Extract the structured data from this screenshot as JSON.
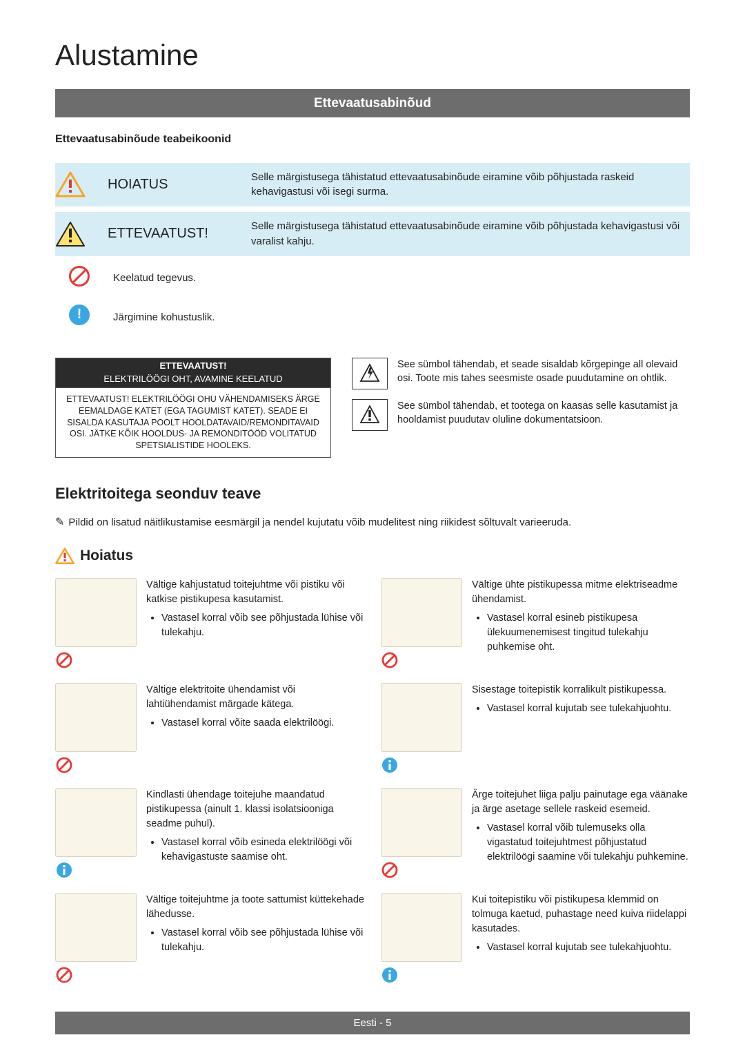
{
  "page_title": "Alustamine",
  "section_bar": "Ettevaatusabinõud",
  "subheading": "Ettevaatusabinõude teabeikoonid",
  "rows": {
    "warning": {
      "label": "HOIATUS",
      "desc": "Selle märgistusega tähistatud ettevaatusabinõude eiramine võib põhjustada raskeid kehavigastusi või isegi surma."
    },
    "caution": {
      "label": "ETTEVAATUST!",
      "desc": "Selle märgistusega tähistatud ettevaatusabinõude eiramine võib põhjustada kehavigastusi või varalist kahju."
    },
    "prohibit": {
      "desc": "Keelatud tegevus."
    },
    "mandatory": {
      "desc": "Järgimine kohustuslik."
    }
  },
  "caution_box": {
    "line1": "ETTEVAATUST!",
    "line2": "ELEKTRILÖÖGI OHT, AVAMINE KEELATUD",
    "body": "ETTEVAATUST! ELEKTRILÖÖGI OHU VÄHENDAMISEKS ÄRGE EEMALDAGE KATET (EGA TAGUMIST KATET). SEADE EI SISALDA KASUTAJA POOLT HOOLDATAVAID/REMONDITAVAID OSI. JÄTKE KÕIK HOOLDUS- JA REMONDITÖÖD VOLITATUD SPETSIALISTIDE HOOLEKS."
  },
  "symbols": {
    "hv": "See sümbol tähendab, et seade sisaldab kõrgepinge all olevaid osi. Toote mis tahes seesmiste osade puudutamine on ohtlik.",
    "doc": "See sümbol tähendab, et tootega on kaasas selle kasutamist ja hooldamist puudutav oluline dokumentatsioon."
  },
  "h2": "Elektritoitega seonduv teave",
  "note": "Pildid on lisatud näitlikustamise eesmärgil ja nendel kujutatu võib mudelitest ning riikidest sõltuvalt varieeruda.",
  "h3": "Hoiatus",
  "warnings": [
    {
      "badge": "prohibit",
      "main": "Vältige kahjustatud toitejuhtme või pistiku või katkise pistikupesa kasutamist.",
      "sub": "Vastasel korral võib see põhjustada lühise või tulekahju."
    },
    {
      "badge": "prohibit",
      "main": "Vältige ühte pistikupessa mitme elektriseadme ühendamist.",
      "sub": "Vastasel korral esineb pistikupesa ülekuumenemisest tingitud tulekahju puhkemise oht."
    },
    {
      "badge": "prohibit",
      "main": "Vältige elektritoite ühendamist või lahtiühendamist märgade kätega.",
      "sub": "Vastasel korral võite saada elektrilöögi."
    },
    {
      "badge": "info",
      "main": "Sisestage toitepistik korralikult pistikupessa.",
      "sub": "Vastasel korral kujutab see tulekahjuohtu."
    },
    {
      "badge": "info",
      "main": "Kindlasti ühendage toitejuhe maandatud pistikupessa (ainult 1. klassi isolatsiooniga seadme puhul).",
      "sub": "Vastasel korral võib esineda elektrilöögi või kehavigastuste saamise oht."
    },
    {
      "badge": "prohibit",
      "main": "Ärge toitejuhet liiga palju painutage ega väänake ja ärge asetage sellele raskeid esemeid.",
      "sub": "Vastasel korral võib tulemuseks olla vigastatud toitejuhtmest põhjustatud elektrilöögi saamine või tulekahju puhkemine."
    },
    {
      "badge": "prohibit",
      "main": "Vältige toitejuhtme ja toote sattumist küttekehade lähedusse.",
      "sub": "Vastasel korral võib see põhjustada lühise või tulekahju."
    },
    {
      "badge": "info",
      "main": "Kui toitepistiku või pistikupesa klemmid on tolmuga kaetud, puhastage need kuiva riidelappi kasutades.",
      "sub": "Vastasel korral kujutab see tulekahjuohtu."
    }
  ],
  "footer": {
    "lang": "Eesti",
    "page": "5"
  },
  "colors": {
    "bar": "#6d6d6d",
    "blue_bg": "#d7edf6",
    "orange": "#f5a623",
    "red": "#e63935",
    "info_blue": "#3aa7e2",
    "illus_bg": "#f9f5e9"
  }
}
